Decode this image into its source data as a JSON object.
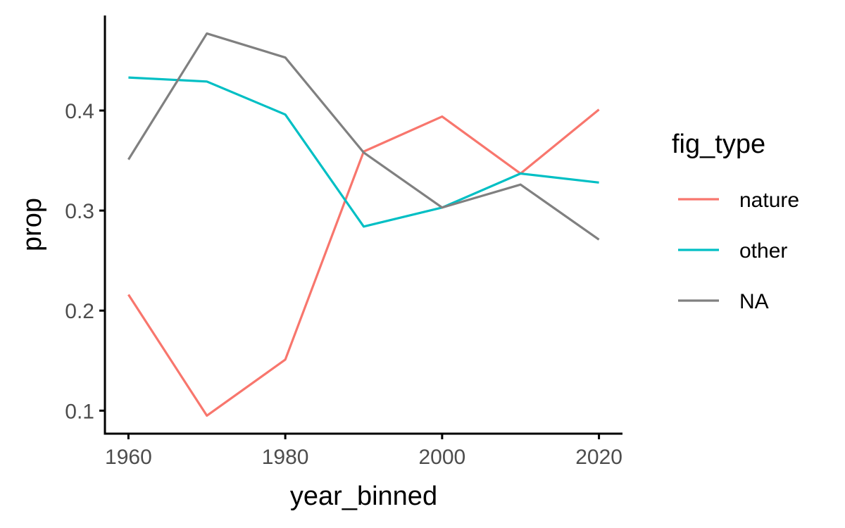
{
  "chart_data": {
    "type": "line",
    "xlabel": "year_binned",
    "ylabel": "prop",
    "x": [
      1960,
      1970,
      1980,
      1990,
      2000,
      2010,
      2020
    ],
    "xticks": [
      1960,
      1980,
      2000,
      2020
    ],
    "xtick_labels": [
      "1960",
      "1980",
      "2000",
      "2020"
    ],
    "xlim": [
      1957,
      2023
    ],
    "yticks": [
      0.1,
      0.2,
      0.3,
      0.4
    ],
    "ytick_labels": [
      "0.1",
      "0.2",
      "0.3",
      "0.4"
    ],
    "ylim": [
      0.077,
      0.495
    ],
    "grid": false,
    "legend": {
      "title": "fig_type",
      "placement": "right"
    },
    "series": [
      {
        "name": "nature",
        "color": "#F8766D",
        "values": [
          0.216,
          0.095,
          0.151,
          0.359,
          0.394,
          0.337,
          0.401
        ]
      },
      {
        "name": "other",
        "color": "#00BFC4",
        "values": [
          0.433,
          0.429,
          0.396,
          0.284,
          0.303,
          0.337,
          0.328
        ]
      },
      {
        "name": "NA",
        "color": "#808080",
        "values": [
          0.351,
          0.477,
          0.453,
          0.358,
          0.303,
          0.326,
          0.271
        ]
      }
    ]
  }
}
